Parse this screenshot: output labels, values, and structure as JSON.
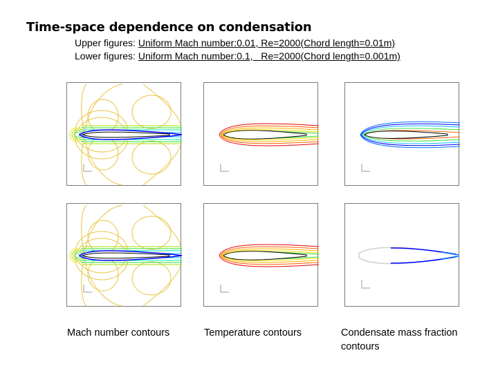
{
  "title": "Time-space dependence on condensation",
  "upper": {
    "label": "Upper figures: ",
    "desc": "Uniform Mach number:0.01, Re=2000(Chord length=0.01m)"
  },
  "lower": {
    "label": "Lower figures: ",
    "desc": "Uniform Mach number:0.1,   Re=2000(Chord length=0.001m)"
  },
  "captions": {
    "mach": "Mach number contours",
    "temp": "Temperature contours",
    "cond_line1": "Condensate mass fraction",
    "cond_line2": "contours"
  },
  "colors": {
    "jet": [
      "#0000ff",
      "#0070ff",
      "#00c0ff",
      "#00e6b0",
      "#30e030",
      "#a0e000",
      "#f0e000",
      "#ffb000",
      "#ff6000",
      "#e80000"
    ],
    "outline": "#000000",
    "gray": "#bdbdbd"
  }
}
